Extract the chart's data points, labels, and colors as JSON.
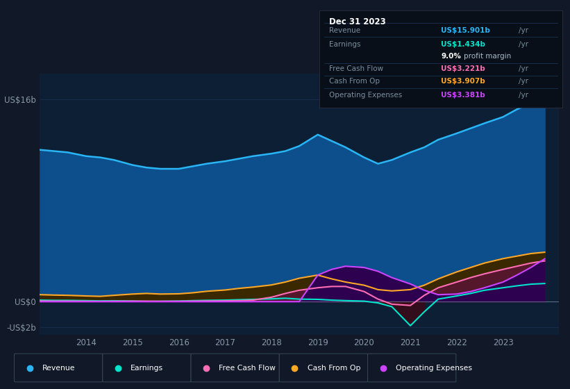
{
  "bg_color": "#111827",
  "plot_bg": "#0d1f35",
  "grid_color": "#1a3050",
  "text_color": "#8899aa",
  "years": [
    2013.0,
    2013.3,
    2013.6,
    2014.0,
    2014.3,
    2014.6,
    2015.0,
    2015.3,
    2015.6,
    2016.0,
    2016.3,
    2016.6,
    2017.0,
    2017.3,
    2017.6,
    2018.0,
    2018.3,
    2018.6,
    2019.0,
    2019.3,
    2019.6,
    2020.0,
    2020.3,
    2020.6,
    2021.0,
    2021.3,
    2021.6,
    2022.0,
    2022.3,
    2022.6,
    2023.0,
    2023.3,
    2023.6,
    2023.9
  ],
  "revenue": [
    12.0,
    11.9,
    11.8,
    11.5,
    11.4,
    11.2,
    10.8,
    10.6,
    10.5,
    10.5,
    10.7,
    10.9,
    11.1,
    11.3,
    11.5,
    11.7,
    11.9,
    12.3,
    13.2,
    12.7,
    12.2,
    11.4,
    10.9,
    11.2,
    11.8,
    12.2,
    12.8,
    13.3,
    13.7,
    14.1,
    14.6,
    15.2,
    15.7,
    15.9
  ],
  "earnings": [
    0.12,
    0.1,
    0.1,
    0.08,
    0.06,
    0.07,
    0.05,
    0.02,
    0.03,
    0.05,
    0.08,
    0.1,
    0.12,
    0.15,
    0.18,
    0.22,
    0.27,
    0.2,
    0.18,
    0.12,
    0.08,
    0.04,
    -0.1,
    -0.4,
    -1.9,
    -0.8,
    0.2,
    0.45,
    0.65,
    0.9,
    1.1,
    1.25,
    1.38,
    1.434
  ],
  "cash_from_op": [
    0.55,
    0.52,
    0.5,
    0.45,
    0.42,
    0.5,
    0.6,
    0.65,
    0.6,
    0.62,
    0.7,
    0.82,
    0.92,
    1.05,
    1.15,
    1.32,
    1.55,
    1.85,
    2.1,
    1.8,
    1.55,
    1.3,
    0.95,
    0.85,
    0.95,
    1.3,
    1.8,
    2.35,
    2.7,
    3.05,
    3.4,
    3.6,
    3.8,
    3.907
  ],
  "free_cash_flow": [
    0.05,
    0.04,
    0.04,
    0.03,
    0.02,
    0.03,
    0.04,
    0.04,
    0.03,
    0.03,
    0.04,
    0.05,
    0.06,
    0.08,
    0.12,
    0.35,
    0.65,
    0.9,
    1.1,
    1.2,
    1.2,
    0.8,
    0.2,
    -0.2,
    -0.3,
    0.5,
    1.1,
    1.55,
    1.9,
    2.2,
    2.55,
    2.8,
    3.05,
    3.221
  ],
  "operating_expenses": [
    0.0,
    0.0,
    0.0,
    0.0,
    0.0,
    0.0,
    0.0,
    0.0,
    0.0,
    0.0,
    0.0,
    0.0,
    0.0,
    0.0,
    0.0,
    0.0,
    0.0,
    0.0,
    2.1,
    2.55,
    2.8,
    2.7,
    2.4,
    1.9,
    1.4,
    0.9,
    0.55,
    0.6,
    0.8,
    1.1,
    1.55,
    2.1,
    2.7,
    3.381
  ],
  "revenue_color": "#29b6f6",
  "revenue_fill": "#0d4f8c",
  "earnings_color": "#00e5cc",
  "earnings_fill_pos": "#1a4a40",
  "earnings_fill_neg": "#3a0a18",
  "free_cash_flow_color": "#ff6eb4",
  "free_cash_flow_fill_pos": "#5a1535",
  "free_cash_flow_fill_neg": "#5a1020",
  "cash_from_op_color": "#ffa726",
  "cash_from_op_fill": "#3a2800",
  "op_exp_color": "#cc44ff",
  "op_exp_fill": "#2d0050",
  "info_box_bg": "#080f18",
  "info_box": {
    "date": "Dec 31 2023",
    "rows": [
      {
        "label": "Revenue",
        "value": "US$15.901b",
        "value_color": "#29b6f6",
        "suffix": "/yr",
        "extra": null
      },
      {
        "label": "Earnings",
        "value": "US$1.434b",
        "value_color": "#00e5cc",
        "suffix": "/yr",
        "extra": null
      },
      {
        "label": "",
        "value": "9.0%",
        "value_color": "#ffffff",
        "suffix": "profit margin",
        "extra": null
      },
      {
        "label": "Free Cash Flow",
        "value": "US$3.221b",
        "value_color": "#ff6eb4",
        "suffix": "/yr",
        "extra": null
      },
      {
        "label": "Cash From Op",
        "value": "US$3.907b",
        "value_color": "#ffa726",
        "suffix": "/yr",
        "extra": null
      },
      {
        "label": "Operating Expenses",
        "value": "US$3.381b",
        "value_color": "#cc44ff",
        "suffix": "/yr",
        "extra": null
      }
    ]
  },
  "legend": [
    {
      "label": "Revenue",
      "color": "#29b6f6"
    },
    {
      "label": "Earnings",
      "color": "#00e5cc"
    },
    {
      "label": "Free Cash Flow",
      "color": "#ff6eb4"
    },
    {
      "label": "Cash From Op",
      "color": "#ffa726"
    },
    {
      "label": "Operating Expenses",
      "color": "#cc44ff"
    }
  ],
  "xlim": [
    2013.0,
    2024.2
  ],
  "ylim": [
    -2.6,
    18.0
  ],
  "xticks": [
    2014,
    2015,
    2016,
    2017,
    2018,
    2019,
    2020,
    2021,
    2022,
    2023
  ],
  "zero_line_y": 0,
  "ytick_positions": [
    16,
    0,
    -2
  ],
  "ytick_labels": [
    "US$16b",
    "US$0",
    "-US$2b"
  ]
}
